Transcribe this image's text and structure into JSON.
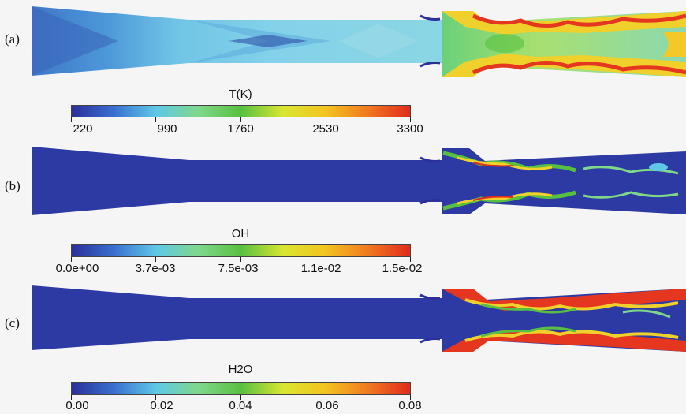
{
  "panels": [
    {
      "label": "(a)",
      "colorbar": {
        "title": "T(K)",
        "ticks": [
          "220",
          "990",
          "1760",
          "2530",
          "3300"
        ]
      }
    },
    {
      "label": "(b)",
      "colorbar": {
        "title": "OH",
        "ticks": [
          "0.0e+00",
          "3.7e-03",
          "7.5e-03",
          "1.1e-02",
          "1.5e-02"
        ]
      }
    },
    {
      "label": "(c)",
      "colorbar": {
        "title": "H2O",
        "ticks": [
          "0.00",
          "0.02",
          "0.04",
          "0.06",
          "0.08"
        ]
      }
    }
  ],
  "colors": {
    "colormap": [
      "#2b2f9a",
      "#3a6fd0",
      "#5fc8e6",
      "#7fd88a",
      "#58c040",
      "#d9e630",
      "#f3c420",
      "#f07a20",
      "#e02c1c"
    ],
    "background": "#f5f5f5",
    "low_field": "#2e3aa3",
    "temperature_core": "#7ecde6"
  }
}
